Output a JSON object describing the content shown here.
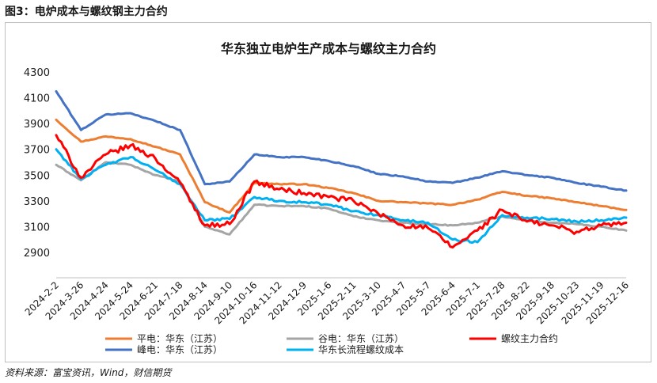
{
  "figure_caption": "图3：电炉成本与螺纹钢主力合约",
  "source_note": "资料来源：富宝资讯，Wind，财信期货",
  "chart_data": {
    "type": "line",
    "title": "华东独立电炉生产成本与螺纹主力合约",
    "xlabel": "",
    "ylabel": "",
    "ylim": [
      2900,
      4300
    ],
    "yticks": [
      2900,
      3100,
      3300,
      3500,
      3700,
      3900,
      4100,
      4300
    ],
    "grid": false,
    "legend_position": "bottom",
    "categories": [
      "2024-2-2",
      "2024-3-26",
      "2024-4-24",
      "2024-5-24",
      "2024-6-21",
      "2024-7-18",
      "2024-8-14",
      "2024-9-10",
      "2024-10-16",
      "2024-11-12",
      "2024-12-9",
      "2025-1-6",
      "2025-2-11",
      "2025-3-10",
      "2025-4-7",
      "2025-5-7",
      "2025-6-4",
      "2025-7-1",
      "2025-7-28",
      "2025-8-22",
      "2025-9-18",
      "2025-10-23",
      "2025-11-19",
      "2025-12-16"
    ],
    "series": [
      {
        "name": "平电：华东（江苏）",
        "color": "#ED7D31",
        "values": [
          3930,
          3760,
          3800,
          3780,
          3720,
          3660,
          3290,
          3210,
          3440,
          3430,
          3430,
          3400,
          3360,
          3300,
          3290,
          3280,
          3270,
          3310,
          3370,
          3340,
          3320,
          3290,
          3260,
          3230
        ]
      },
      {
        "name": "谷电：华东（江苏）",
        "color": "#A5A5A5",
        "values": [
          3580,
          3460,
          3600,
          3580,
          3500,
          3450,
          3100,
          3040,
          3270,
          3260,
          3260,
          3240,
          3180,
          3150,
          3130,
          3120,
          3110,
          3130,
          3180,
          3150,
          3130,
          3120,
          3100,
          3070
        ]
      },
      {
        "name": "螺纹主力合约",
        "color": "#FF0000",
        "values": [
          3810,
          3480,
          3660,
          3730,
          3630,
          3440,
          3110,
          3120,
          3450,
          3390,
          3360,
          3330,
          3300,
          3200,
          3110,
          3090,
          2940,
          3070,
          3230,
          3140,
          3110,
          3060,
          3110,
          3130
        ]
      },
      {
        "name": "峰电：华东（江苏）",
        "color": "#4472C4",
        "values": [
          4150,
          3850,
          3970,
          3980,
          3920,
          3850,
          3430,
          3450,
          3660,
          3640,
          3640,
          3610,
          3570,
          3510,
          3490,
          3450,
          3440,
          3480,
          3530,
          3500,
          3480,
          3440,
          3410,
          3380
        ]
      },
      {
        "name": "华东长流程螺纹成本",
        "color": "#00B0F0",
        "values": [
          3700,
          3470,
          3580,
          3640,
          3540,
          3430,
          3150,
          3160,
          3330,
          3300,
          3290,
          3270,
          3220,
          3190,
          3150,
          3130,
          3000,
          2980,
          3190,
          3170,
          3160,
          3140,
          3150,
          3170
        ]
      }
    ]
  }
}
